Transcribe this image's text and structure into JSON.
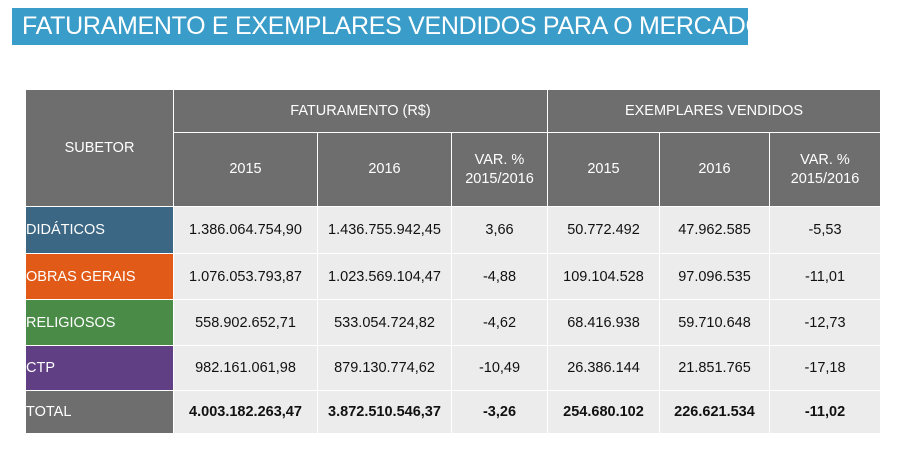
{
  "title": "FATURAMENTO E EXEMPLARES VENDIDOS PARA O MERCADO",
  "headers": {
    "subetor": "SUBETOR",
    "faturamento": "FATURAMENTO (R$)",
    "exemplares": "EXEMPLARES VENDIDOS",
    "year_2015": "2015",
    "year_2016": "2016",
    "var_line1": "VAR. %",
    "var_line2": "2015/2016"
  },
  "colors": {
    "title_bar": "#3a9cc8",
    "header": "#6e6e6e",
    "cell": "#ececec",
    "didaticos": "#3b6684",
    "obras_gerais": "#e15a17",
    "religiosos": "#4a8b47",
    "ctp": "#603f85",
    "total": "#6e6e6e"
  },
  "rows": [
    {
      "label": "DIDÁTICOS",
      "fat_2015": "1.386.064.754,90",
      "fat_2016": "1.436.755.942,45",
      "fat_var": "3,66",
      "ex_2015": "50.772.492",
      "ex_2016": "47.962.585",
      "ex_var": "-5,53"
    },
    {
      "label": "OBRAS GERAIS",
      "fat_2015": "1.076.053.793,87",
      "fat_2016": "1.023.569.104,47",
      "fat_var": "-4,88",
      "ex_2015": "109.104.528",
      "ex_2016": "97.096.535",
      "ex_var": "-11,01"
    },
    {
      "label": "RELIGIOSOS",
      "fat_2015": "558.902.652,71",
      "fat_2016": "533.054.724,82",
      "fat_var": "-4,62",
      "ex_2015": "68.416.938",
      "ex_2016": "59.710.648",
      "ex_var": "-12,73"
    },
    {
      "label": "CTP",
      "fat_2015": "982.161.061,98",
      "fat_2016": "879.130.774,62",
      "fat_var": "-10,49",
      "ex_2015": "26.386.144",
      "ex_2016": "21.851.765",
      "ex_var": "-17,18"
    },
    {
      "label": "TOTAL",
      "fat_2015": "4.003.182.263,47",
      "fat_2016": "3.872.510.546,37",
      "fat_var": "-3,26",
      "ex_2015": "254.680.102",
      "ex_2016": "226.621.534",
      "ex_var": "-11,02"
    }
  ]
}
